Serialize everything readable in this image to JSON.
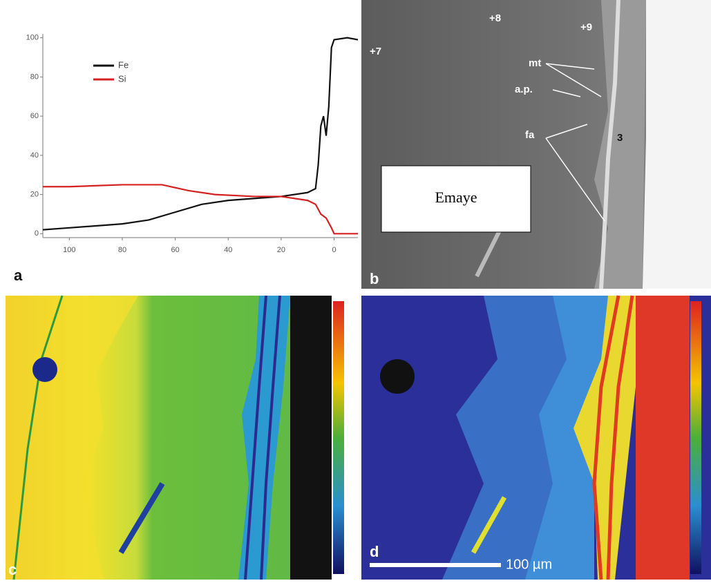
{
  "chart_data": {
    "type": "line",
    "xlim": [
      110,
      -9
    ],
    "ylim": [
      -2,
      102
    ],
    "xticks": [
      100,
      80,
      60,
      40,
      20,
      0
    ],
    "yticks": [
      0,
      20,
      40,
      60,
      80,
      100
    ],
    "legend": "upper-left",
    "series": [
      {
        "name": "Fe",
        "color": "#111111",
        "x": [
          110,
          100,
          80,
          70,
          60,
          50,
          40,
          30,
          20,
          10,
          7,
          6,
          5,
          4,
          3,
          2,
          1,
          0,
          -5,
          -9
        ],
        "values": [
          2,
          3,
          5,
          7,
          11,
          15,
          17,
          18,
          19,
          21,
          23,
          35,
          55,
          60,
          50,
          65,
          95,
          99,
          100,
          99
        ]
      },
      {
        "name": "Si",
        "color": "#d62020",
        "x": [
          110,
          100,
          80,
          65,
          55,
          45,
          30,
          20,
          10,
          7,
          5,
          3,
          1,
          0,
          -9
        ],
        "values": [
          24,
          24,
          25,
          25,
          22,
          20,
          19,
          19,
          17,
          15,
          10,
          8,
          3,
          0,
          0
        ]
      }
    ]
  },
  "panels": {
    "a": {
      "label": "a"
    },
    "b": {
      "label": "b",
      "points": [
        "+7",
        "+8",
        "+9"
      ],
      "mt": "mt",
      "ap": "a.p.",
      "fa": "fa",
      "three": "3",
      "box": "Emaye"
    },
    "c": {
      "label": "c"
    },
    "d": {
      "label": "d",
      "scale_bar": "100 µm"
    }
  }
}
